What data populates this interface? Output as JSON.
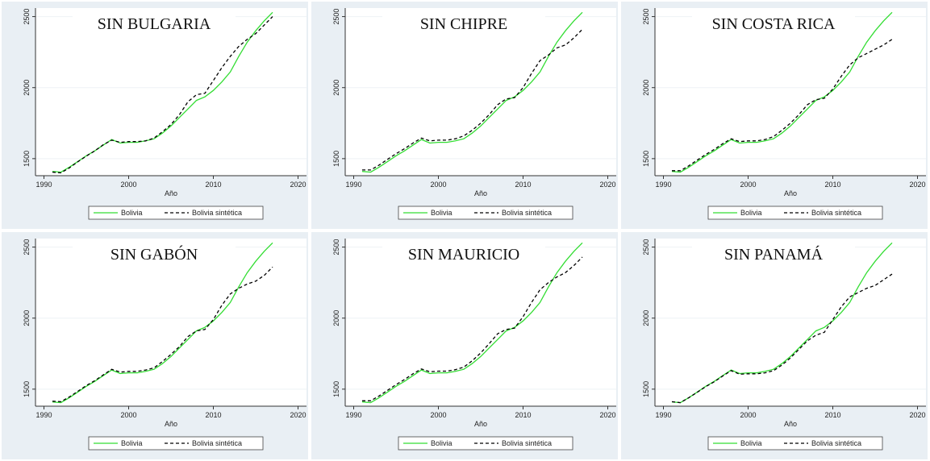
{
  "chart_data": [
    {
      "type": "line",
      "title": "SIN BULGARIA",
      "x_label": "Año",
      "x": [
        1991,
        1992,
        1993,
        1994,
        1995,
        1996,
        1997,
        1998,
        1999,
        2000,
        2001,
        2002,
        2003,
        2004,
        2005,
        2006,
        2007,
        2008,
        2009,
        2010,
        2011,
        2012,
        2013,
        2014,
        2015,
        2016,
        2017
      ],
      "series": [
        {
          "name": "Bolivia",
          "color": "#33dd33",
          "linestyle": "solid",
          "values": [
            1410,
            1405,
            1440,
            1480,
            1520,
            1555,
            1595,
            1635,
            1610,
            1615,
            1615,
            1625,
            1640,
            1680,
            1730,
            1790,
            1850,
            1910,
            1935,
            1980,
            2040,
            2110,
            2220,
            2320,
            2400,
            2470,
            2530
          ]
        },
        {
          "name": "Bolivia sintética",
          "color": "#000000",
          "linestyle": "dashed",
          "values": [
            1405,
            1400,
            1435,
            1478,
            1518,
            1555,
            1598,
            1630,
            1615,
            1620,
            1620,
            1625,
            1645,
            1690,
            1740,
            1810,
            1900,
            1950,
            1960,
            2050,
            2140,
            2220,
            2290,
            2340,
            2380,
            2440,
            2500
          ]
        }
      ],
      "xlim": [
        1989,
        2021
      ],
      "ylim": [
        1380,
        2560
      ],
      "xticks": [
        1990,
        2000,
        2010,
        2020
      ],
      "yticks": [
        1500,
        2000,
        2500
      ],
      "grid": true
    },
    {
      "type": "line",
      "title": "SIN CHIPRE",
      "x_label": "Año",
      "x": [
        1991,
        1992,
        1993,
        1994,
        1995,
        1996,
        1997,
        1998,
        1999,
        2000,
        2001,
        2002,
        2003,
        2004,
        2005,
        2006,
        2007,
        2008,
        2009,
        2010,
        2011,
        2012,
        2013,
        2014,
        2015,
        2016,
        2017
      ],
      "series": [
        {
          "name": "Bolivia",
          "color": "#33dd33",
          "linestyle": "solid",
          "values": [
            1410,
            1405,
            1440,
            1480,
            1520,
            1555,
            1595,
            1635,
            1610,
            1615,
            1615,
            1625,
            1640,
            1680,
            1730,
            1790,
            1850,
            1910,
            1935,
            1980,
            2040,
            2110,
            2220,
            2320,
            2400,
            2470,
            2530
          ]
        },
        {
          "name": "Bolivia sintética",
          "color": "#000000",
          "linestyle": "dashed",
          "values": [
            1420,
            1420,
            1455,
            1495,
            1535,
            1570,
            1610,
            1645,
            1625,
            1630,
            1630,
            1640,
            1660,
            1700,
            1750,
            1810,
            1880,
            1920,
            1930,
            2000,
            2100,
            2190,
            2230,
            2280,
            2300,
            2350,
            2410
          ]
        }
      ],
      "xlim": [
        1989,
        2021
      ],
      "ylim": [
        1380,
        2560
      ],
      "xticks": [
        1990,
        2000,
        2010,
        2020
      ],
      "yticks": [
        1500,
        2000,
        2500
      ],
      "grid": true
    },
    {
      "type": "line",
      "title": "SIN COSTA RICA",
      "x_label": "Año",
      "x": [
        1991,
        1992,
        1993,
        1994,
        1995,
        1996,
        1997,
        1998,
        1999,
        2000,
        2001,
        2002,
        2003,
        2004,
        2005,
        2006,
        2007,
        2008,
        2009,
        2010,
        2011,
        2012,
        2013,
        2014,
        2015,
        2016,
        2017
      ],
      "series": [
        {
          "name": "Bolivia",
          "color": "#33dd33",
          "linestyle": "solid",
          "values": [
            1410,
            1405,
            1440,
            1480,
            1520,
            1555,
            1595,
            1635,
            1610,
            1615,
            1615,
            1625,
            1640,
            1680,
            1730,
            1790,
            1850,
            1910,
            1935,
            1980,
            2040,
            2110,
            2220,
            2320,
            2400,
            2470,
            2530
          ]
        },
        {
          "name": "Bolivia sintética",
          "color": "#000000",
          "linestyle": "dashed",
          "values": [
            1415,
            1415,
            1450,
            1490,
            1530,
            1565,
            1605,
            1640,
            1620,
            1625,
            1625,
            1635,
            1655,
            1700,
            1750,
            1810,
            1880,
            1915,
            1925,
            1990,
            2080,
            2160,
            2210,
            2240,
            2270,
            2300,
            2340
          ]
        }
      ],
      "xlim": [
        1989,
        2021
      ],
      "ylim": [
        1380,
        2560
      ],
      "xticks": [
        1990,
        2000,
        2010,
        2020
      ],
      "yticks": [
        1500,
        2000,
        2500
      ],
      "grid": true
    },
    {
      "type": "line",
      "title": "SIN GABÓN",
      "x_label": "Año",
      "x": [
        1991,
        1992,
        1993,
        1994,
        1995,
        1996,
        1997,
        1998,
        1999,
        2000,
        2001,
        2002,
        2003,
        2004,
        2005,
        2006,
        2007,
        2008,
        2009,
        2010,
        2011,
        2012,
        2013,
        2014,
        2015,
        2016,
        2017
      ],
      "series": [
        {
          "name": "Bolivia",
          "color": "#33dd33",
          "linestyle": "solid",
          "values": [
            1410,
            1405,
            1440,
            1480,
            1520,
            1555,
            1595,
            1635,
            1610,
            1615,
            1615,
            1625,
            1640,
            1680,
            1730,
            1790,
            1850,
            1910,
            1935,
            1980,
            2040,
            2110,
            2220,
            2320,
            2400,
            2470,
            2530
          ]
        },
        {
          "name": "Bolivia sintética",
          "color": "#000000",
          "linestyle": "dashed",
          "values": [
            1415,
            1412,
            1445,
            1485,
            1525,
            1560,
            1600,
            1640,
            1620,
            1625,
            1625,
            1635,
            1650,
            1695,
            1745,
            1800,
            1870,
            1910,
            1920,
            1990,
            2090,
            2170,
            2210,
            2240,
            2260,
            2300,
            2360
          ]
        }
      ],
      "xlim": [
        1989,
        2021
      ],
      "ylim": [
        1380,
        2560
      ],
      "xticks": [
        1990,
        2000,
        2010,
        2020
      ],
      "yticks": [
        1500,
        2000,
        2500
      ],
      "grid": true
    },
    {
      "type": "line",
      "title": "SIN MAURICIO",
      "x_label": "Año",
      "x": [
        1991,
        1992,
        1993,
        1994,
        1995,
        1996,
        1997,
        1998,
        1999,
        2000,
        2001,
        2002,
        2003,
        2004,
        2005,
        2006,
        2007,
        2008,
        2009,
        2010,
        2011,
        2012,
        2013,
        2014,
        2015,
        2016,
        2017
      ],
      "series": [
        {
          "name": "Bolivia",
          "color": "#33dd33",
          "linestyle": "solid",
          "values": [
            1410,
            1405,
            1440,
            1480,
            1520,
            1555,
            1595,
            1635,
            1610,
            1615,
            1615,
            1625,
            1640,
            1680,
            1730,
            1790,
            1850,
            1910,
            1935,
            1980,
            2040,
            2110,
            2220,
            2320,
            2400,
            2470,
            2530
          ]
        },
        {
          "name": "Bolivia sintética",
          "color": "#000000",
          "linestyle": "dashed",
          "values": [
            1418,
            1418,
            1452,
            1492,
            1532,
            1568,
            1608,
            1642,
            1622,
            1627,
            1627,
            1637,
            1655,
            1700,
            1755,
            1820,
            1890,
            1920,
            1930,
            2010,
            2110,
            2200,
            2250,
            2290,
            2320,
            2370,
            2430
          ]
        }
      ],
      "xlim": [
        1989,
        2021
      ],
      "ylim": [
        1380,
        2560
      ],
      "xticks": [
        1990,
        2000,
        2010,
        2020
      ],
      "yticks": [
        1500,
        2000,
        2500
      ],
      "grid": true
    },
    {
      "type": "line",
      "title": "SIN PANAMÁ",
      "x_label": "Año",
      "x": [
        1991,
        1992,
        1993,
        1994,
        1995,
        1996,
        1997,
        1998,
        1999,
        2000,
        2001,
        2002,
        2003,
        2004,
        2005,
        2006,
        2007,
        2008,
        2009,
        2010,
        2011,
        2012,
        2013,
        2014,
        2015,
        2016,
        2017
      ],
      "series": [
        {
          "name": "Bolivia",
          "color": "#33dd33",
          "linestyle": "solid",
          "values": [
            1410,
            1405,
            1440,
            1480,
            1520,
            1555,
            1595,
            1635,
            1610,
            1615,
            1615,
            1625,
            1640,
            1680,
            1730,
            1790,
            1850,
            1910,
            1935,
            1980,
            2040,
            2110,
            2220,
            2320,
            2400,
            2470,
            2530
          ]
        },
        {
          "name": "Bolivia sintética",
          "color": "#000000",
          "linestyle": "dashed",
          "values": [
            1412,
            1405,
            1440,
            1478,
            1518,
            1552,
            1592,
            1630,
            1605,
            1608,
            1608,
            1615,
            1630,
            1670,
            1720,
            1780,
            1840,
            1880,
            1900,
            1990,
            2080,
            2150,
            2180,
            2210,
            2230,
            2270,
            2310
          ]
        }
      ],
      "xlim": [
        1989,
        2021
      ],
      "ylim": [
        1380,
        2560
      ],
      "xticks": [
        1990,
        2000,
        2010,
        2020
      ],
      "yticks": [
        1500,
        2000,
        2500
      ],
      "grid": true
    }
  ]
}
